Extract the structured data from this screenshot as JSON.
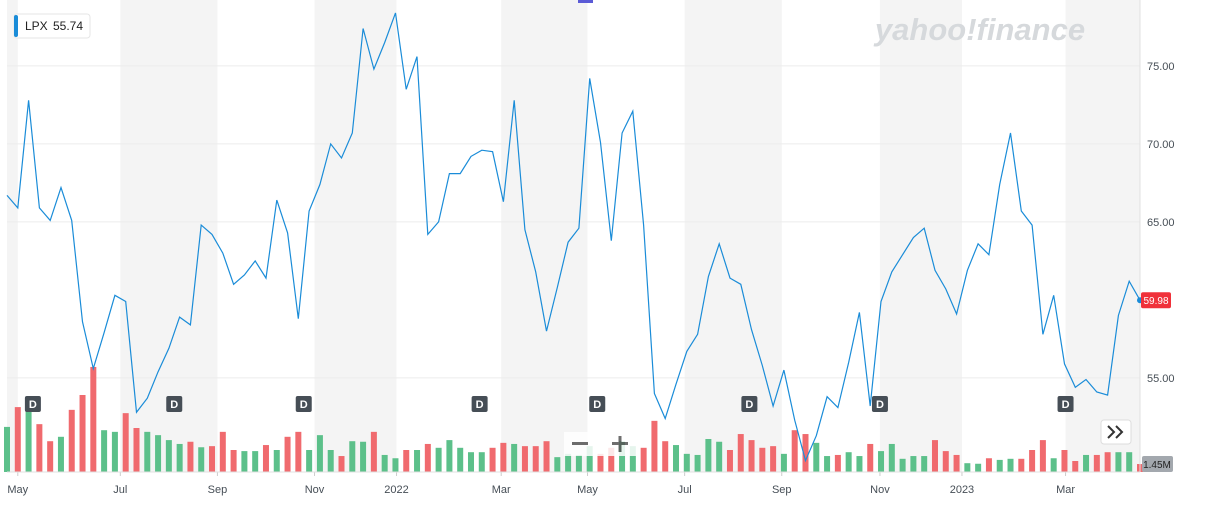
{
  "chart_data": {
    "type": "line",
    "logo": "yahoo!finance",
    "legend_price": 55.74,
    "series": [
      {
        "name": "LPX",
        "color": "#1a8cd8",
        "values": [
          66.7,
          65.9,
          72.8,
          65.9,
          65.1,
          67.2,
          65.1,
          58.6,
          55.6,
          57.9,
          60.3,
          59.9,
          52.8,
          53.7,
          55.4,
          56.9,
          58.9,
          58.4,
          64.8,
          64.2,
          63.0,
          61.0,
          61.6,
          62.5,
          61.4,
          66.4,
          64.3,
          58.8,
          65.7,
          67.4,
          70.0,
          69.1,
          70.7,
          77.4,
          74.8,
          76.5,
          78.4,
          73.5,
          75.6,
          64.2,
          65.0,
          68.1,
          68.1,
          69.2,
          69.6,
          69.5,
          66.3,
          72.8,
          64.5,
          61.8,
          58.0,
          60.8,
          63.7,
          64.6,
          74.2,
          70.1,
          63.8,
          70.7,
          72.1,
          64.8,
          54.0,
          52.4,
          54.6,
          56.7,
          57.8,
          61.5,
          63.6,
          61.4,
          61.0,
          58.1,
          55.8,
          53.2,
          55.5,
          52.3,
          49.7,
          51.3,
          53.8,
          53.1,
          56.0,
          59.2,
          53.2,
          59.9,
          61.8,
          62.9,
          64.0,
          64.6,
          61.9,
          60.7,
          59.1,
          61.9,
          63.6,
          62.9,
          67.4,
          70.7,
          65.7,
          64.8,
          57.8,
          60.3,
          55.9,
          54.4,
          54.9,
          54.1,
          53.9,
          59.0,
          61.2,
          59.98
        ]
      }
    ],
    "volume": {
      "up_color": "#5cc08a",
      "down_color": "#f06a6e",
      "ylim": [
        0,
        20
      ],
      "values": [
        8.2,
        11.8,
        11.3,
        8.7,
        5.6,
        6.4,
        11.3,
        14.0,
        19.1,
        7.6,
        7.3,
        10.7,
        8.0,
        7.3,
        6.7,
        5.8,
        5.1,
        5.5,
        4.5,
        4.7,
        7.3,
        4.0,
        3.8,
        3.8,
        4.9,
        4.0,
        6.4,
        7.3,
        4.0,
        6.7,
        4.0,
        2.9,
        5.6,
        5.5,
        7.3,
        3.1,
        2.5,
        4.0,
        4.0,
        5.1,
        4.4,
        5.8,
        4.4,
        3.6,
        3.6,
        4.4,
        5.3,
        5.1,
        4.7,
        4.7,
        5.6,
        2.7,
        3.3,
        3.1,
        4.7,
        3.3,
        4.4,
        5.6,
        4.7,
        4.4,
        9.3,
        5.6,
        4.9,
        3.3,
        3.1,
        6.0,
        5.5,
        4.0,
        6.9,
        5.8,
        4.4,
        4.7,
        3.3,
        7.6,
        6.9,
        5.3,
        2.9,
        3.1,
        3.6,
        2.9,
        5.1,
        3.8,
        5.1,
        2.4,
        2.9,
        2.9,
        5.8,
        3.8,
        3.1,
        1.6,
        1.5,
        2.5,
        2.2,
        2.4,
        2.4,
        4.0,
        5.8,
        2.5,
        4.0,
        2.0,
        3.1,
        3.1,
        3.6,
        3.6,
        3.6,
        1.45
      ],
      "tag": {
        "value": 1.45,
        "label": "1.45M"
      }
    },
    "xlim": [
      0,
      105
    ],
    "xticks": [
      {
        "value": 1.0,
        "label": "May"
      },
      {
        "value": 10.5,
        "label": "Jul"
      },
      {
        "value": 19.5,
        "label": "Sep"
      },
      {
        "value": 28.5,
        "label": "Nov"
      },
      {
        "value": 36.1,
        "label": "2022"
      },
      {
        "value": 45.8,
        "label": "Mar"
      },
      {
        "value": 53.8,
        "label": "May"
      },
      {
        "value": 62.8,
        "label": "Jul"
      },
      {
        "value": 71.8,
        "label": "Sep"
      },
      {
        "value": 80.9,
        "label": "Nov"
      },
      {
        "value": 88.5,
        "label": "2023"
      },
      {
        "value": 98.1,
        "label": "Mar"
      }
    ],
    "ylim": [
      48.97,
      78.97
    ],
    "yticks": [
      {
        "value": 55,
        "label": "55.00"
      },
      {
        "value": 65,
        "label": "65.00"
      },
      {
        "value": 70,
        "label": "70.00"
      },
      {
        "value": 75,
        "label": "75.00"
      }
    ],
    "dividends": {
      "label": "D",
      "x": [
        2.4,
        15.5,
        27.5,
        43.8,
        54.7,
        68.8,
        80.9,
        98.1
      ]
    }
  }
}
